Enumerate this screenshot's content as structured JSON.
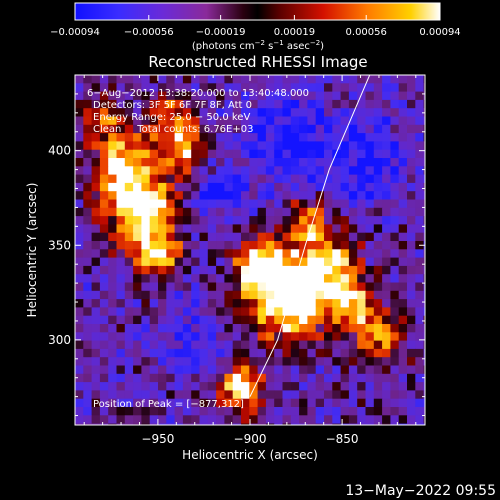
{
  "chart_data": {
    "type": "heatmap",
    "title": "Reconstructed RHESSI Image",
    "xlabel": "Heliocentric X (arcsec)",
    "ylabel": "Heliocentric Y (arcsec)",
    "xlim": [
      -995,
      -805
    ],
    "ylim": [
      255,
      440
    ],
    "x_ticks": [
      -950,
      -900,
      -850
    ],
    "x_tick_labels": [
      "−950",
      "−900",
      "−850"
    ],
    "y_ticks": [
      300,
      350,
      400
    ],
    "y_tick_labels": [
      "300",
      "350",
      "400"
    ],
    "colorbar": {
      "min": -0.00094,
      "max": 0.00094,
      "ticks": [
        -0.00094,
        -0.00056,
        -0.00019,
        0.00019,
        0.00056,
        0.00094
      ],
      "tick_labels": [
        "−0.00094",
        "−0.00056",
        "−0.00019",
        "0.00019",
        "0.00056",
        "0.00094"
      ],
      "unit_main": "(photons cm",
      "unit_sup1": "−2",
      "unit_mid1": " s",
      "unit_sup2": "−1",
      "unit_mid2": " asec",
      "unit_sup3": "−2",
      "unit_end": ")"
    },
    "annotations": {
      "time_range": "6−Aug−2012 13:38:20.000 to 13:40:48.000",
      "detectors": "Detectors: 3F 5F 6F 7F 8F, Att 0",
      "energy": "Energy Range: 25.0 − 50.0 keV",
      "clean": "Clean     Total counts: 6.76E+03",
      "peak": "Position of Peak = [−877,312]"
    },
    "peak": [
      -877,
      312
    ],
    "limb_line": [
      [
        -900,
        270
      ],
      [
        -885,
        300
      ],
      [
        -870,
        350
      ],
      [
        -857,
        390
      ],
      [
        -835,
        440
      ]
    ],
    "hotspots": [
      {
        "x": -960,
        "y": 370,
        "s": 14,
        "a": 0.95
      },
      {
        "x": -970,
        "y": 395,
        "s": 11,
        "a": 0.8
      },
      {
        "x": -950,
        "y": 345,
        "s": 9,
        "a": 0.7
      },
      {
        "x": -935,
        "y": 400,
        "s": 10,
        "a": 0.75
      },
      {
        "x": -945,
        "y": 420,
        "s": 8,
        "a": 0.6
      },
      {
        "x": -880,
        "y": 320,
        "s": 14,
        "a": 1.0
      },
      {
        "x": -895,
        "y": 340,
        "s": 10,
        "a": 0.85
      },
      {
        "x": -860,
        "y": 340,
        "s": 12,
        "a": 0.85
      },
      {
        "x": -845,
        "y": 320,
        "s": 9,
        "a": 0.7
      },
      {
        "x": -905,
        "y": 275,
        "s": 9,
        "a": 0.85
      },
      {
        "x": -870,
        "y": 365,
        "s": 8,
        "a": 0.6
      },
      {
        "x": -830,
        "y": 300,
        "s": 10,
        "a": 0.6
      },
      {
        "x": -980,
        "y": 420,
        "s": 7,
        "a": 0.5
      }
    ],
    "cold_spots": [
      {
        "x": -880,
        "y": 405,
        "s": 18,
        "a": 0.9
      },
      {
        "x": -835,
        "y": 395,
        "s": 16,
        "a": 0.85
      },
      {
        "x": -920,
        "y": 380,
        "s": 12,
        "a": 0.7
      },
      {
        "x": -930,
        "y": 300,
        "s": 14,
        "a": 0.6
      }
    ]
  },
  "footer": {
    "timestamp": "13−May−2022 09:55"
  }
}
